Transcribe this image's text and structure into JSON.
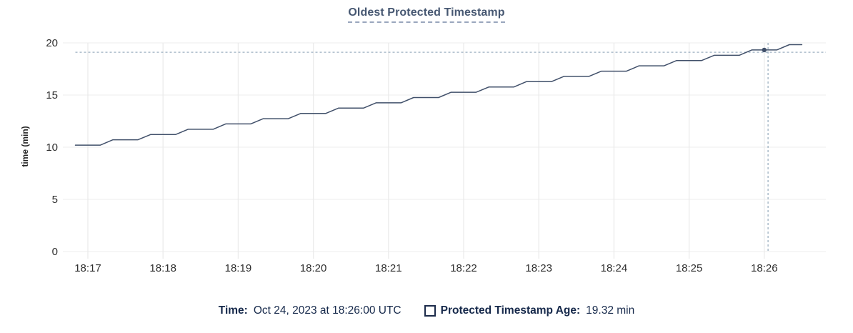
{
  "title": "Oldest Protected Timestamp",
  "colors": {
    "line": "#41506a",
    "dot": "#41506a",
    "title": "#475872",
    "title_underline": "#9aa7bd",
    "grid_v": "#ebebeb",
    "grid_h": "#f0f0f0",
    "crosshair": "#9db0c1",
    "axis_text": "#2e2e2e",
    "legend_text": "#16294b"
  },
  "y_axis": {
    "label": "time (min)",
    "ticks": [
      0,
      5,
      10,
      15,
      20
    ]
  },
  "x_axis": {
    "ticks": [
      "18:17",
      "18:18",
      "18:19",
      "18:20",
      "18:21",
      "18:22",
      "18:23",
      "18:24",
      "18:25",
      "18:26"
    ]
  },
  "legend": {
    "time_label": "Time:",
    "time_value": "Oct 24, 2023 at 18:26:00 UTC",
    "series_label": "Protected Timestamp Age:",
    "series_value": "19.32 min"
  },
  "chart_data": {
    "type": "line",
    "title": "Oldest Protected Timestamp",
    "xlabel": "",
    "ylabel": "time (min)",
    "ylim": [
      0,
      20
    ],
    "grid": true,
    "legend_position": "bottom",
    "x_tick_labels": [
      "18:17",
      "18:18",
      "18:19",
      "18:20",
      "18:21",
      "18:22",
      "18:23",
      "18:24",
      "18:25",
      "18:26"
    ],
    "x_start": "18:16:50",
    "x_end": "18:26:30",
    "sample_interval_sec": 10,
    "series": [
      {
        "name": "Protected Timestamp Age",
        "values": [
          10.2,
          10.2,
          10.2,
          10.71,
          10.71,
          10.71,
          11.21,
          11.21,
          11.21,
          11.72,
          11.72,
          11.72,
          12.23,
          12.23,
          12.23,
          12.73,
          12.73,
          12.73,
          13.24,
          13.24,
          13.24,
          13.75,
          13.75,
          13.75,
          14.25,
          14.25,
          14.25,
          14.76,
          14.76,
          14.76,
          15.27,
          15.27,
          15.27,
          15.77,
          15.77,
          15.77,
          16.28,
          16.28,
          16.28,
          16.79,
          16.79,
          16.79,
          17.29,
          17.29,
          17.29,
          17.8,
          17.8,
          17.8,
          18.31,
          18.31,
          18.31,
          18.81,
          18.81,
          18.81,
          19.32,
          19.32,
          19.32,
          19.83,
          19.83
        ]
      }
    ],
    "hover_point": {
      "x": "18:26:00",
      "y": 19.32
    },
    "crosshair": {
      "x_time": "18:26:03",
      "y_value": 19.1
    }
  }
}
